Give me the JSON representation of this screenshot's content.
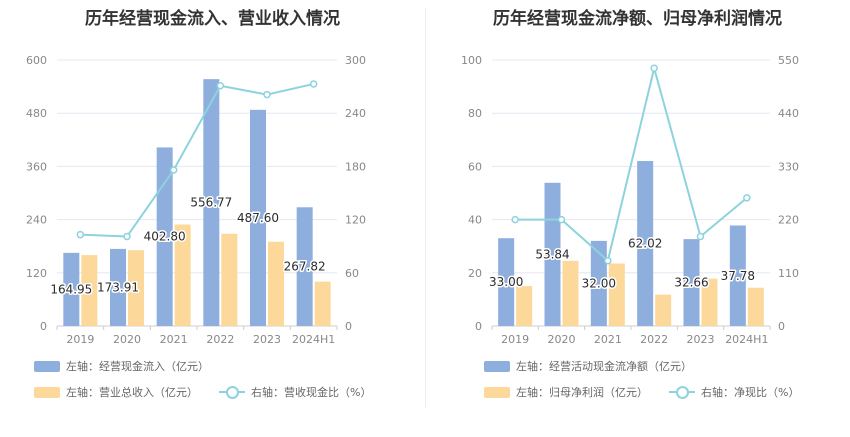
{
  "colors": {
    "bar1": "#8eaedd",
    "bar2": "#fcd99b",
    "line": "#8dd3de",
    "grid": "#e6e8f2",
    "axis": "#cccccc"
  },
  "chart_data": [
    {
      "type": "bar",
      "title": "历年经营现金流入、营业收入情况",
      "categories": [
        "2019",
        "2020",
        "2021",
        "2022",
        "2023",
        "2024H1"
      ],
      "left_axis": {
        "ticks": [
          "0",
          "120",
          "240",
          "360",
          "480",
          "600"
        ],
        "ylim": [
          0,
          600
        ]
      },
      "right_axis": {
        "ticks": [
          "0",
          "60",
          "120",
          "180",
          "240",
          "300"
        ],
        "ylim": [
          0,
          300
        ]
      },
      "series": [
        {
          "name": "左轴：经营现金流入（亿元）",
          "kind": "bar",
          "axis": "left",
          "values": [
            164.95,
            173.91,
            402.8,
            556.77,
            487.6,
            267.82
          ],
          "labels": [
            "164.95",
            "173.91",
            "402.80",
            "556.77",
            "487.60",
            "267.82"
          ]
        },
        {
          "name": "左轴：营业总收入（亿元）",
          "kind": "bar",
          "axis": "left",
          "values": [
            160,
            171,
            229,
            208,
            190,
            100
          ]
        },
        {
          "name": "右轴：营收现金比（%）",
          "kind": "line",
          "axis": "right",
          "values": [
            103,
            101,
            176,
            271,
            261,
            273
          ]
        }
      ]
    },
    {
      "type": "bar",
      "title": "历年经营现金流净额、归母净利润情况",
      "categories": [
        "2019",
        "2020",
        "2021",
        "2022",
        "2023",
        "2024H1"
      ],
      "left_axis": {
        "ticks": [
          "0",
          "20",
          "40",
          "60",
          "80",
          "100"
        ],
        "ylim": [
          0,
          100
        ]
      },
      "right_axis": {
        "ticks": [
          "0",
          "110",
          "220",
          "330",
          "440",
          "550"
        ],
        "ylim": [
          0,
          550
        ]
      },
      "series": [
        {
          "name": "左轴：经营活动现金流净额（亿元）",
          "kind": "bar",
          "axis": "left",
          "values": [
            33.0,
            53.84,
            32.0,
            62.02,
            32.66,
            37.78
          ],
          "labels": [
            "33.00",
            "53.84",
            "32.00",
            "62.02",
            "32.66",
            "37.78"
          ]
        },
        {
          "name": "左轴：归母净利润（亿元）",
          "kind": "bar",
          "axis": "left",
          "values": [
            15,
            24.5,
            23.5,
            11.8,
            17.8,
            14.4
          ]
        },
        {
          "name": "右轴：净现比（%）",
          "kind": "line",
          "axis": "right",
          "values": [
            220,
            220,
            135,
            533,
            185,
            265
          ]
        }
      ]
    }
  ]
}
